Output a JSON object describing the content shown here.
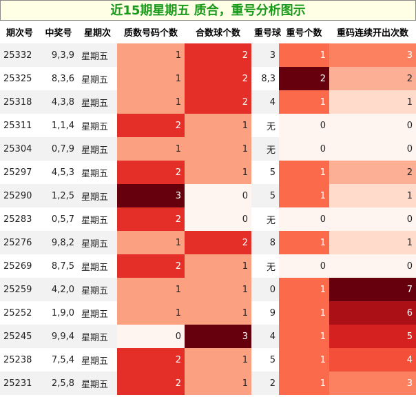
{
  "header": {
    "title": "近15期星期五 质合，重号分析图示"
  },
  "table": {
    "columns": [
      "期次号",
      "中奖号",
      "星期次",
      "质数号码个数",
      "合数球个数",
      "重号球",
      "重号个数",
      "重码连续开出次数"
    ],
    "rows": [
      [
        "25332",
        "9,3,9",
        "星期五",
        1,
        2,
        "3",
        1,
        3
      ],
      [
        "25325",
        "8,3,6",
        "星期五",
        1,
        2,
        "8,3",
        2,
        2
      ],
      [
        "25318",
        "4,3,8",
        "星期五",
        1,
        2,
        "4",
        1,
        1
      ],
      [
        "25311",
        "1,1,4",
        "星期五",
        2,
        1,
        "无",
        0,
        0
      ],
      [
        "25304",
        "0,7,9",
        "星期五",
        1,
        1,
        "无",
        0,
        0
      ],
      [
        "25297",
        "4,5,3",
        "星期五",
        2,
        1,
        "5",
        1,
        2
      ],
      [
        "25290",
        "1,2,5",
        "星期五",
        3,
        0,
        "5",
        1,
        1
      ],
      [
        "25283",
        "0,5,7",
        "星期五",
        2,
        0,
        "无",
        0,
        0
      ],
      [
        "25276",
        "9,8,2",
        "星期五",
        1,
        2,
        "8",
        1,
        1
      ],
      [
        "25269",
        "8,7,5",
        "星期五",
        2,
        1,
        "无",
        0,
        0
      ],
      [
        "25259",
        "4,2,0",
        "星期五",
        1,
        1,
        "0",
        1,
        7
      ],
      [
        "25252",
        "1,9,0",
        "星期五",
        1,
        1,
        "9",
        1,
        6
      ],
      [
        "25245",
        "9,9,4",
        "星期五",
        0,
        3,
        "4",
        1,
        5
      ],
      [
        "25238",
        "7,5,4",
        "星期五",
        2,
        1,
        "5",
        1,
        4
      ],
      [
        "25231",
        "2,5,8",
        "星期五",
        2,
        1,
        "2",
        1,
        3
      ]
    ]
  }
}
